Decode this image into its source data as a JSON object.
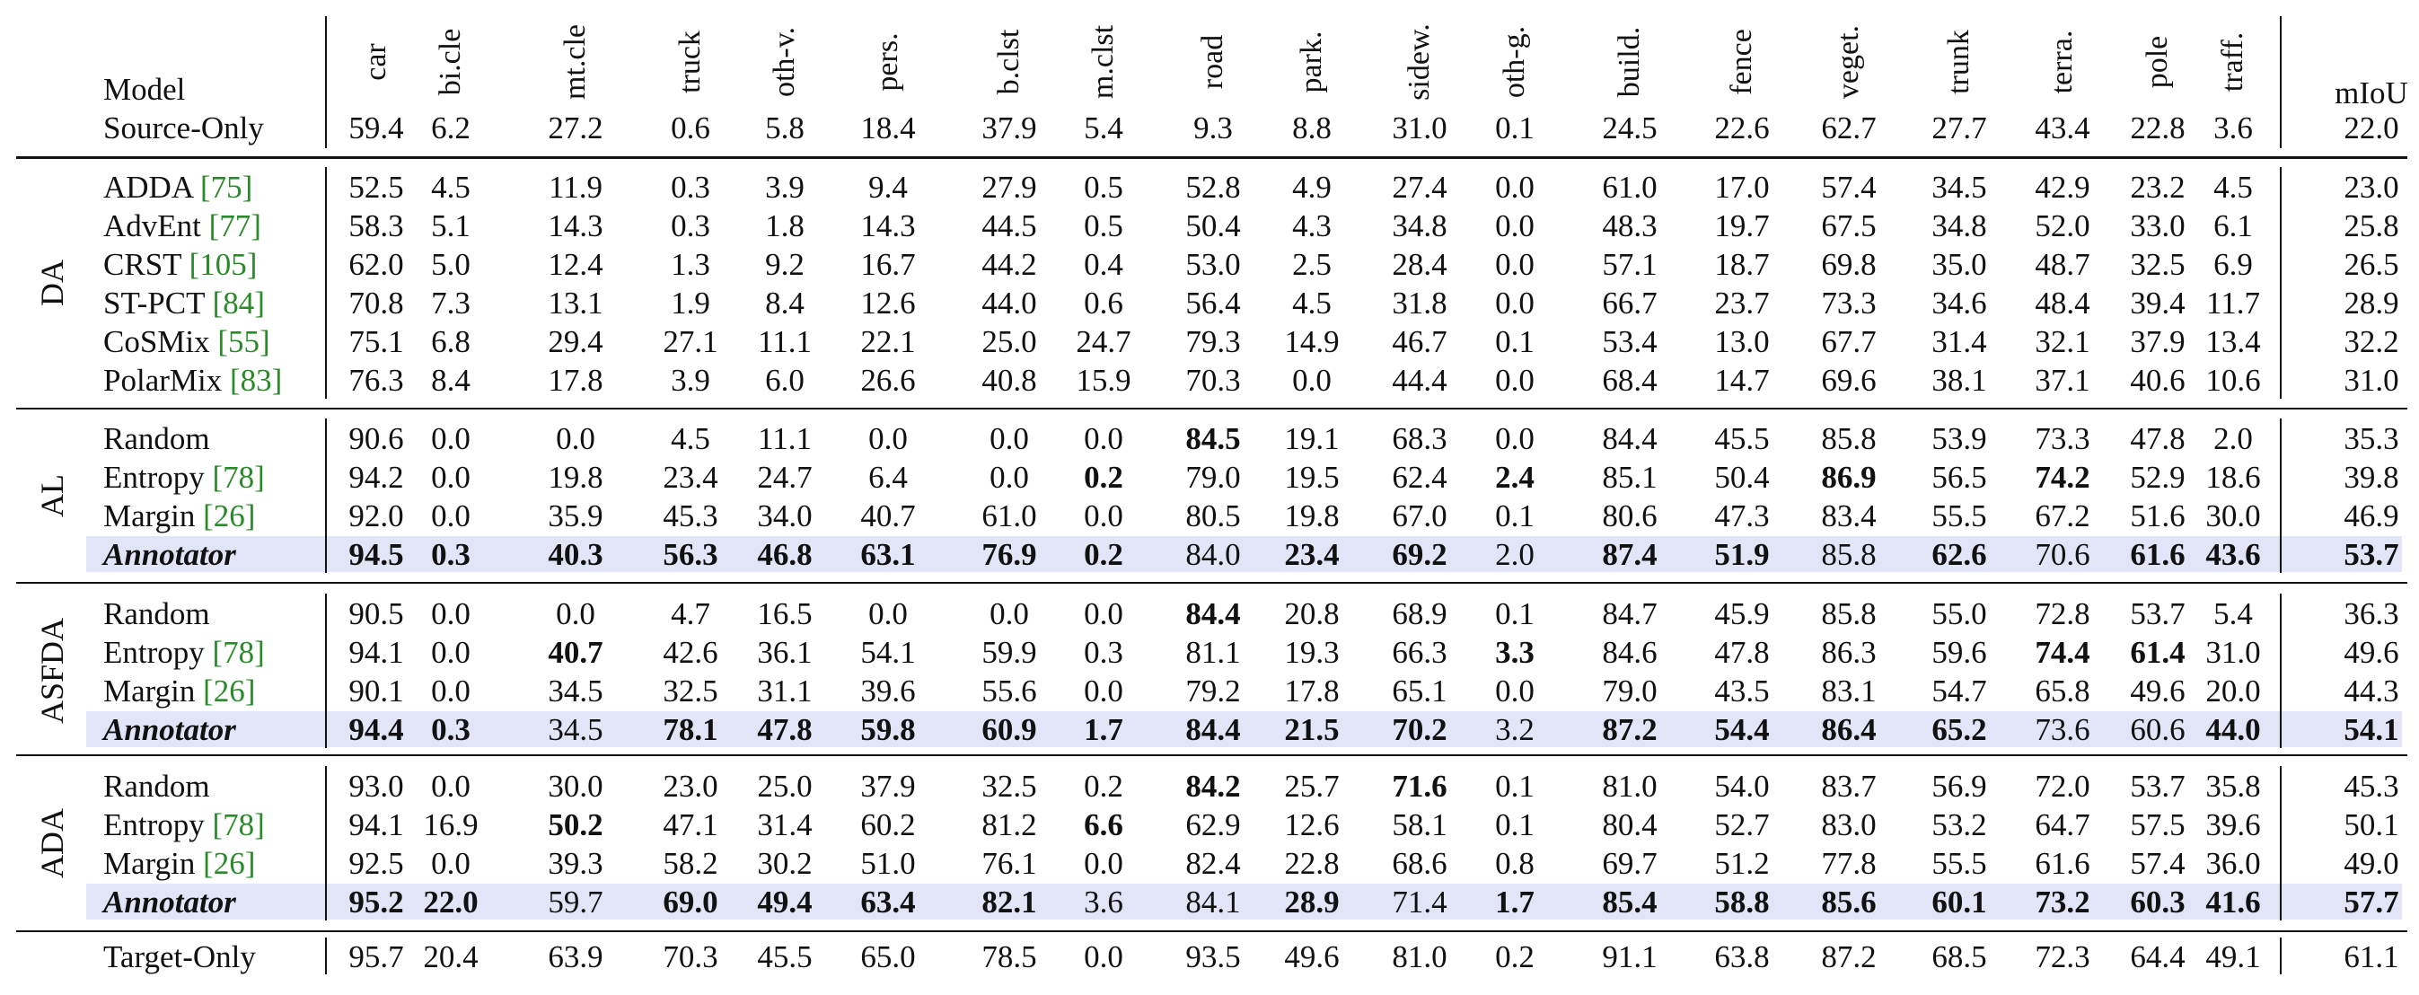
{
  "header": {
    "model_label": "Model",
    "miou_label": "mIoU",
    "columns": [
      "car",
      "bi.cle",
      "mt.cle",
      "truck",
      "oth-v.",
      "pers.",
      "b.clst",
      "m.clst",
      "road",
      "park.",
      "sidew.",
      "oth-g.",
      "build.",
      "fence",
      "veget.",
      "trunk",
      "terra.",
      "pole",
      "traff."
    ]
  },
  "source_only": {
    "name": "Source-Only",
    "values": [
      "59.4",
      "6.2",
      "27.2",
      "0.6",
      "5.8",
      "18.4",
      "37.9",
      "5.4",
      "9.3",
      "8.8",
      "31.0",
      "0.1",
      "24.5",
      "22.6",
      "62.7",
      "27.7",
      "43.4",
      "22.8",
      "3.6"
    ],
    "miou": "22.0"
  },
  "groups": [
    {
      "label": "DA",
      "rows": [
        {
          "name": "ADDA",
          "cite": "[75]",
          "values": [
            "52.5",
            "4.5",
            "11.9",
            "0.3",
            "3.9",
            "9.4",
            "27.9",
            "0.5",
            "52.8",
            "4.9",
            "27.4",
            "0.0",
            "61.0",
            "17.0",
            "57.4",
            "34.5",
            "42.9",
            "23.2",
            "4.5"
          ],
          "miou": "23.0",
          "bold": []
        },
        {
          "name": "AdvEnt",
          "cite": "[77]",
          "values": [
            "58.3",
            "5.1",
            "14.3",
            "0.3",
            "1.8",
            "14.3",
            "44.5",
            "0.5",
            "50.4",
            "4.3",
            "34.8",
            "0.0",
            "48.3",
            "19.7",
            "67.5",
            "34.8",
            "52.0",
            "33.0",
            "6.1"
          ],
          "miou": "25.8",
          "bold": []
        },
        {
          "name": "CRST",
          "cite": "[105]",
          "values": [
            "62.0",
            "5.0",
            "12.4",
            "1.3",
            "9.2",
            "16.7",
            "44.2",
            "0.4",
            "53.0",
            "2.5",
            "28.4",
            "0.0",
            "57.1",
            "18.7",
            "69.8",
            "35.0",
            "48.7",
            "32.5",
            "6.9"
          ],
          "miou": "26.5",
          "bold": []
        },
        {
          "name": "ST-PCT",
          "cite": "[84]",
          "values": [
            "70.8",
            "7.3",
            "13.1",
            "1.9",
            "8.4",
            "12.6",
            "44.0",
            "0.6",
            "56.4",
            "4.5",
            "31.8",
            "0.0",
            "66.7",
            "23.7",
            "73.3",
            "34.6",
            "48.4",
            "39.4",
            "11.7"
          ],
          "miou": "28.9",
          "bold": []
        },
        {
          "name": "CoSMix",
          "cite": "[55]",
          "values": [
            "75.1",
            "6.8",
            "29.4",
            "27.1",
            "11.1",
            "22.1",
            "25.0",
            "24.7",
            "79.3",
            "14.9",
            "46.7",
            "0.1",
            "53.4",
            "13.0",
            "67.7",
            "31.4",
            "32.1",
            "37.9",
            "13.4"
          ],
          "miou": "32.2",
          "bold": []
        },
        {
          "name": "PolarMix",
          "cite": "[83]",
          "values": [
            "76.3",
            "8.4",
            "17.8",
            "3.9",
            "6.0",
            "26.6",
            "40.8",
            "15.9",
            "70.3",
            "0.0",
            "44.4",
            "0.0",
            "68.4",
            "14.7",
            "69.6",
            "38.1",
            "37.1",
            "40.6",
            "10.6"
          ],
          "miou": "31.0",
          "bold": []
        }
      ]
    },
    {
      "label": "AL",
      "rows": [
        {
          "name": "Random",
          "cite": "",
          "values": [
            "90.6",
            "0.0",
            "0.0",
            "4.5",
            "11.1",
            "0.0",
            "0.0",
            "0.0",
            "84.5",
            "19.1",
            "68.3",
            "0.0",
            "84.4",
            "45.5",
            "85.8",
            "53.9",
            "73.3",
            "47.8",
            "2.0"
          ],
          "miou": "35.3",
          "bold": [
            8
          ]
        },
        {
          "name": "Entropy",
          "cite": "[78]",
          "values": [
            "94.2",
            "0.0",
            "19.8",
            "23.4",
            "24.7",
            "6.4",
            "0.0",
            "0.2",
            "79.0",
            "19.5",
            "62.4",
            "2.4",
            "85.1",
            "50.4",
            "86.9",
            "56.5",
            "74.2",
            "52.9",
            "18.6"
          ],
          "miou": "39.8",
          "bold": [
            7,
            11,
            14,
            16
          ]
        },
        {
          "name": "Margin",
          "cite": "[26]",
          "values": [
            "92.0",
            "0.0",
            "35.9",
            "45.3",
            "34.0",
            "40.7",
            "61.0",
            "0.0",
            "80.5",
            "19.8",
            "67.0",
            "0.1",
            "80.6",
            "47.3",
            "83.4",
            "55.5",
            "67.2",
            "51.6",
            "30.0"
          ],
          "miou": "46.9",
          "bold": []
        },
        {
          "name": "Annotator",
          "cite": "",
          "annotator": true,
          "values": [
            "94.5",
            "0.3",
            "40.3",
            "56.3",
            "46.8",
            "63.1",
            "76.9",
            "0.2",
            "84.0",
            "23.4",
            "69.2",
            "2.0",
            "87.4",
            "51.9",
            "85.8",
            "62.6",
            "70.6",
            "61.6",
            "43.6"
          ],
          "miou": "53.7",
          "bold": [
            0,
            1,
            2,
            3,
            4,
            5,
            6,
            7,
            9,
            10,
            12,
            13,
            15,
            17,
            18,
            19
          ]
        }
      ]
    },
    {
      "label": "ASFDA",
      "rows": [
        {
          "name": "Random",
          "cite": "",
          "values": [
            "90.5",
            "0.0",
            "0.0",
            "4.7",
            "16.5",
            "0.0",
            "0.0",
            "0.0",
            "84.4",
            "20.8",
            "68.9",
            "0.1",
            "84.7",
            "45.9",
            "85.8",
            "55.0",
            "72.8",
            "53.7",
            "5.4"
          ],
          "miou": "36.3",
          "bold": [
            8
          ]
        },
        {
          "name": "Entropy",
          "cite": "[78]",
          "values": [
            "94.1",
            "0.0",
            "40.7",
            "42.6",
            "36.1",
            "54.1",
            "59.9",
            "0.3",
            "81.1",
            "19.3",
            "66.3",
            "3.3",
            "84.6",
            "47.8",
            "86.3",
            "59.6",
            "74.4",
            "61.4",
            "31.0"
          ],
          "miou": "49.6",
          "bold": [
            2,
            11,
            16,
            17
          ]
        },
        {
          "name": "Margin",
          "cite": "[26]",
          "values": [
            "90.1",
            "0.0",
            "34.5",
            "32.5",
            "31.1",
            "39.6",
            "55.6",
            "0.0",
            "79.2",
            "17.8",
            "65.1",
            "0.0",
            "79.0",
            "43.5",
            "83.1",
            "54.7",
            "65.8",
            "49.6",
            "20.0"
          ],
          "miou": "44.3",
          "bold": []
        },
        {
          "name": "Annotator",
          "cite": "",
          "annotator": true,
          "values": [
            "94.4",
            "0.3",
            "34.5",
            "78.1",
            "47.8",
            "59.8",
            "60.9",
            "1.7",
            "84.4",
            "21.5",
            "70.2",
            "3.2",
            "87.2",
            "54.4",
            "86.4",
            "65.2",
            "73.6",
            "60.6",
            "44.0"
          ],
          "miou": "54.1",
          "bold": [
            0,
            1,
            3,
            4,
            5,
            6,
            7,
            8,
            9,
            10,
            12,
            13,
            14,
            15,
            18,
            19
          ]
        }
      ]
    },
    {
      "label": "ADA",
      "rows": [
        {
          "name": "Random",
          "cite": "",
          "values": [
            "93.0",
            "0.0",
            "30.0",
            "23.0",
            "25.0",
            "37.9",
            "32.5",
            "0.2",
            "84.2",
            "25.7",
            "71.6",
            "0.1",
            "81.0",
            "54.0",
            "83.7",
            "56.9",
            "72.0",
            "53.7",
            "35.8"
          ],
          "miou": "45.3",
          "bold": [
            8,
            10
          ]
        },
        {
          "name": "Entropy",
          "cite": "[78]",
          "values": [
            "94.1",
            "16.9",
            "50.2",
            "47.1",
            "31.4",
            "60.2",
            "81.2",
            "6.6",
            "62.9",
            "12.6",
            "58.1",
            "0.1",
            "80.4",
            "52.7",
            "83.0",
            "53.2",
            "64.7",
            "57.5",
            "39.6"
          ],
          "miou": "50.1",
          "bold": [
            2,
            7
          ]
        },
        {
          "name": "Margin",
          "cite": "[26]",
          "values": [
            "92.5",
            "0.0",
            "39.3",
            "58.2",
            "30.2",
            "51.0",
            "76.1",
            "0.0",
            "82.4",
            "22.8",
            "68.6",
            "0.8",
            "69.7",
            "51.2",
            "77.8",
            "55.5",
            "61.6",
            "57.4",
            "36.0"
          ],
          "miou": "49.0",
          "bold": []
        },
        {
          "name": "Annotator",
          "cite": "",
          "annotator": true,
          "values": [
            "95.2",
            "22.0",
            "59.7",
            "69.0",
            "49.4",
            "63.4",
            "82.1",
            "3.6",
            "84.1",
            "28.9",
            "71.4",
            "1.7",
            "85.4",
            "58.8",
            "85.6",
            "60.1",
            "73.2",
            "60.3",
            "41.6"
          ],
          "miou": "57.7",
          "bold": [
            0,
            1,
            3,
            4,
            5,
            6,
            9,
            11,
            12,
            13,
            14,
            15,
            16,
            17,
            18,
            19
          ]
        }
      ]
    }
  ],
  "target_only": {
    "name": "Target-Only",
    "values": [
      "95.7",
      "20.4",
      "63.9",
      "70.3",
      "45.5",
      "65.0",
      "78.5",
      "0.0",
      "93.5",
      "49.6",
      "81.0",
      "0.2",
      "91.1",
      "63.8",
      "87.2",
      "68.5",
      "72.3",
      "64.4",
      "49.1"
    ],
    "miou": "61.1"
  },
  "colors": {
    "highlight": "#e2e4f8",
    "citation": "#2a8a2a",
    "text": "#111111"
  }
}
